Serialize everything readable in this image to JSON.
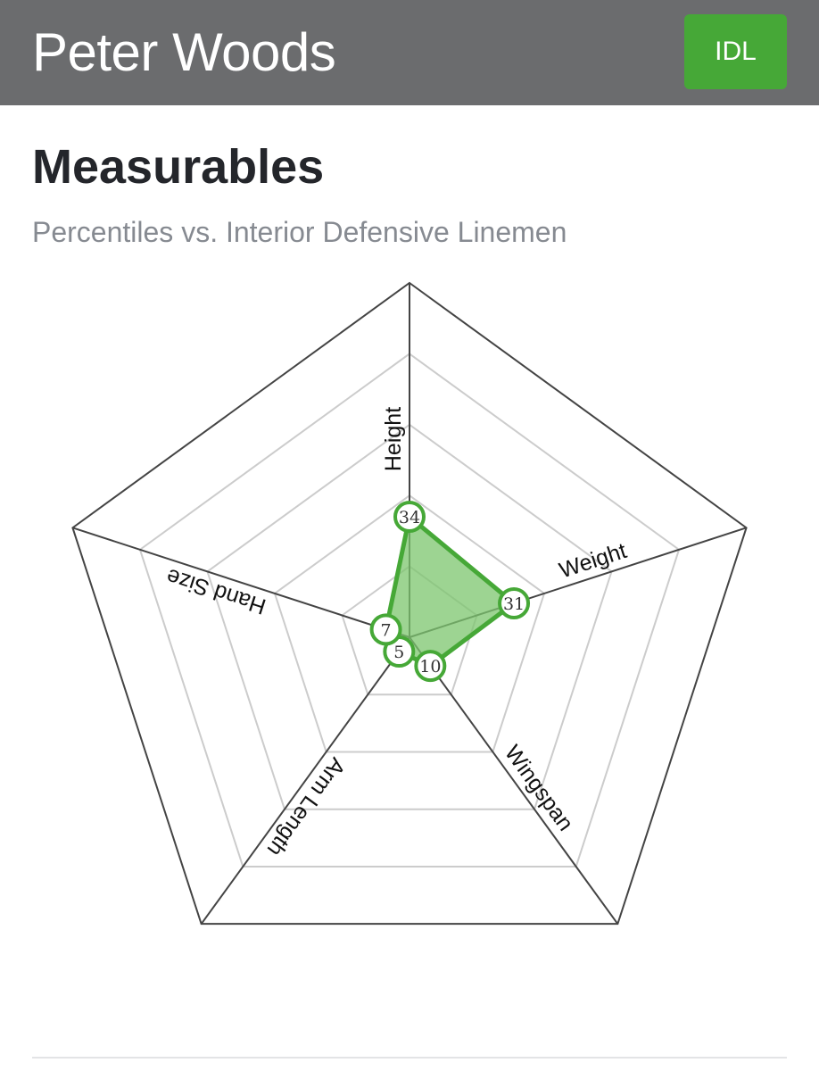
{
  "header": {
    "player_name": "Peter Woods",
    "position_badge": "IDL"
  },
  "section": {
    "title": "Measurables",
    "subtitle": "Percentiles vs. Interior Defensive Linemen"
  },
  "colors": {
    "header_bg": "#6b6c6e",
    "badge_bg": "#46a837",
    "series_stroke": "#46a837",
    "series_fill": "#7cc66d"
  },
  "chart_data": {
    "type": "radar",
    "axes": [
      "Height",
      "Weight",
      "Wingspan",
      "Arm Length",
      "Hand Size"
    ],
    "series": [
      {
        "values": [
          34,
          31,
          10,
          5,
          7
        ]
      }
    ],
    "rlim": [
      0,
      100
    ],
    "grid": true,
    "grid_rings": 5
  }
}
